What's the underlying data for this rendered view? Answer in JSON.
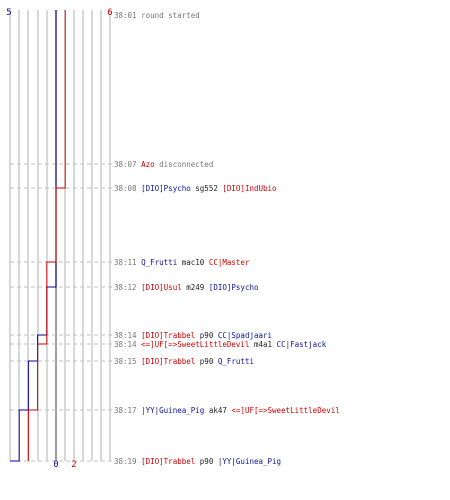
{
  "colors": {
    "blue": "#0000aa",
    "red": "#cc0000",
    "grid": "#b0b0b0",
    "mid": "#808080",
    "dash": "#c0c0c0"
  },
  "top_labels": {
    "blue": "5",
    "red": "6"
  },
  "bottom_labels": {
    "blue": "0",
    "red": "2"
  },
  "events": [
    {
      "time": "38:01",
      "parts": [
        {
          "text": "round started",
          "c": "gray"
        }
      ]
    },
    {
      "time": "38:07",
      "parts": [
        {
          "text": "Azo",
          "c": "red"
        },
        {
          "text": " disconnected",
          "c": "gray"
        }
      ]
    },
    {
      "time": "38:08",
      "parts": [
        {
          "text": "[DIO]Psycho",
          "c": "blue"
        },
        {
          "text": " sg552 ",
          "c": "dark"
        },
        {
          "text": "[DIO]IndUbio",
          "c": "red"
        }
      ]
    },
    {
      "time": "38:11",
      "parts": [
        {
          "text": "Q_Frutti",
          "c": "blue"
        },
        {
          "text": " mac10 ",
          "c": "dark"
        },
        {
          "text": "CC|Master",
          "c": "red"
        }
      ]
    },
    {
      "time": "38:12",
      "parts": [
        {
          "text": "[DIO]Usul",
          "c": "red"
        },
        {
          "text": " m249 ",
          "c": "dark"
        },
        {
          "text": "[DIO]Psycho",
          "c": "blue"
        }
      ]
    },
    {
      "time": "38:14",
      "parts": [
        {
          "text": "[DIO]Trabbel",
          "c": "red"
        },
        {
          "text": " p90 ",
          "c": "dark"
        },
        {
          "text": "CC|Spadjaari",
          "c": "blue"
        }
      ]
    },
    {
      "time": "38:14",
      "parts": [
        {
          "text": "<=]UF[=>SweetLittleDevil",
          "c": "red"
        },
        {
          "text": " m4a1 ",
          "c": "dark"
        },
        {
          "text": "CC|Fastjack",
          "c": "blue"
        }
      ]
    },
    {
      "time": "38:15",
      "parts": [
        {
          "text": "[DIO]Trabbel",
          "c": "red"
        },
        {
          "text": " p90 ",
          "c": "dark"
        },
        {
          "text": "Q_Frutti",
          "c": "blue"
        }
      ]
    },
    {
      "time": "38:17",
      "parts": [
        {
          "text": "|YY|Guinea_Pig",
          "c": "blue"
        },
        {
          "text": " ak47 ",
          "c": "dark"
        },
        {
          "text": "<=]UF[=>SweetLittleDevil",
          "c": "red"
        }
      ]
    },
    {
      "time": "38:19",
      "parts": [
        {
          "text": "[DIO]Trabbel",
          "c": "red"
        },
        {
          "text": " p90 ",
          "c": "dark"
        },
        {
          "text": "|YY|Guinea_Pig",
          "c": "blue"
        }
      ]
    }
  ],
  "blue_counts": [
    5,
    5,
    5,
    5,
    4,
    3,
    3,
    2,
    1,
    0
  ],
  "red_counts": [
    6,
    6,
    5,
    4,
    4,
    4,
    3,
    3,
    2,
    2
  ]
}
